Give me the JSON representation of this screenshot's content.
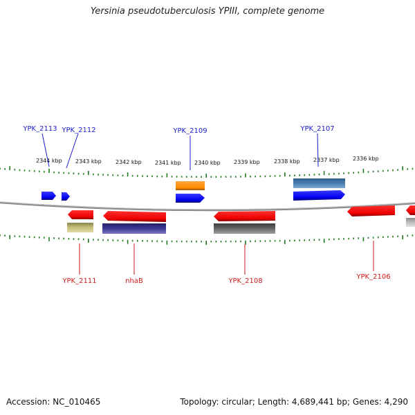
{
  "title": "Yersinia pseudotuberculosis YPIII, complete genome",
  "footer": {
    "accession": "Accession: NC_010465",
    "stats": "Topology: circular; Length: 4,689,441 bp; Genes: 4,290"
  },
  "colors": {
    "forward_label": "#1a1acc",
    "reverse_label": "#cc1a1a",
    "ticks": "#1f7a1f",
    "backbone": "#8c8c8c"
  },
  "kbp_ticks": [
    "2344 kbp",
    "2343 kbp",
    "2342 kbp",
    "2341 kbp",
    "2340 kbp",
    "2339 kbp",
    "2338 kbp",
    "2337 kbp",
    "2336 kbp"
  ],
  "genes": [
    {
      "name": "YPK_2113",
      "strand": "forward"
    },
    {
      "name": "YPK_2112",
      "strand": "forward"
    },
    {
      "name": "YPK_2109",
      "strand": "forward"
    },
    {
      "name": "YPK_2107",
      "strand": "forward"
    },
    {
      "name": "YPK_2111",
      "strand": "reverse"
    },
    {
      "name": "nhaB",
      "strand": "reverse"
    },
    {
      "name": "YPK_2108",
      "strand": "reverse"
    },
    {
      "name": "YPK_2106",
      "strand": "reverse"
    }
  ]
}
